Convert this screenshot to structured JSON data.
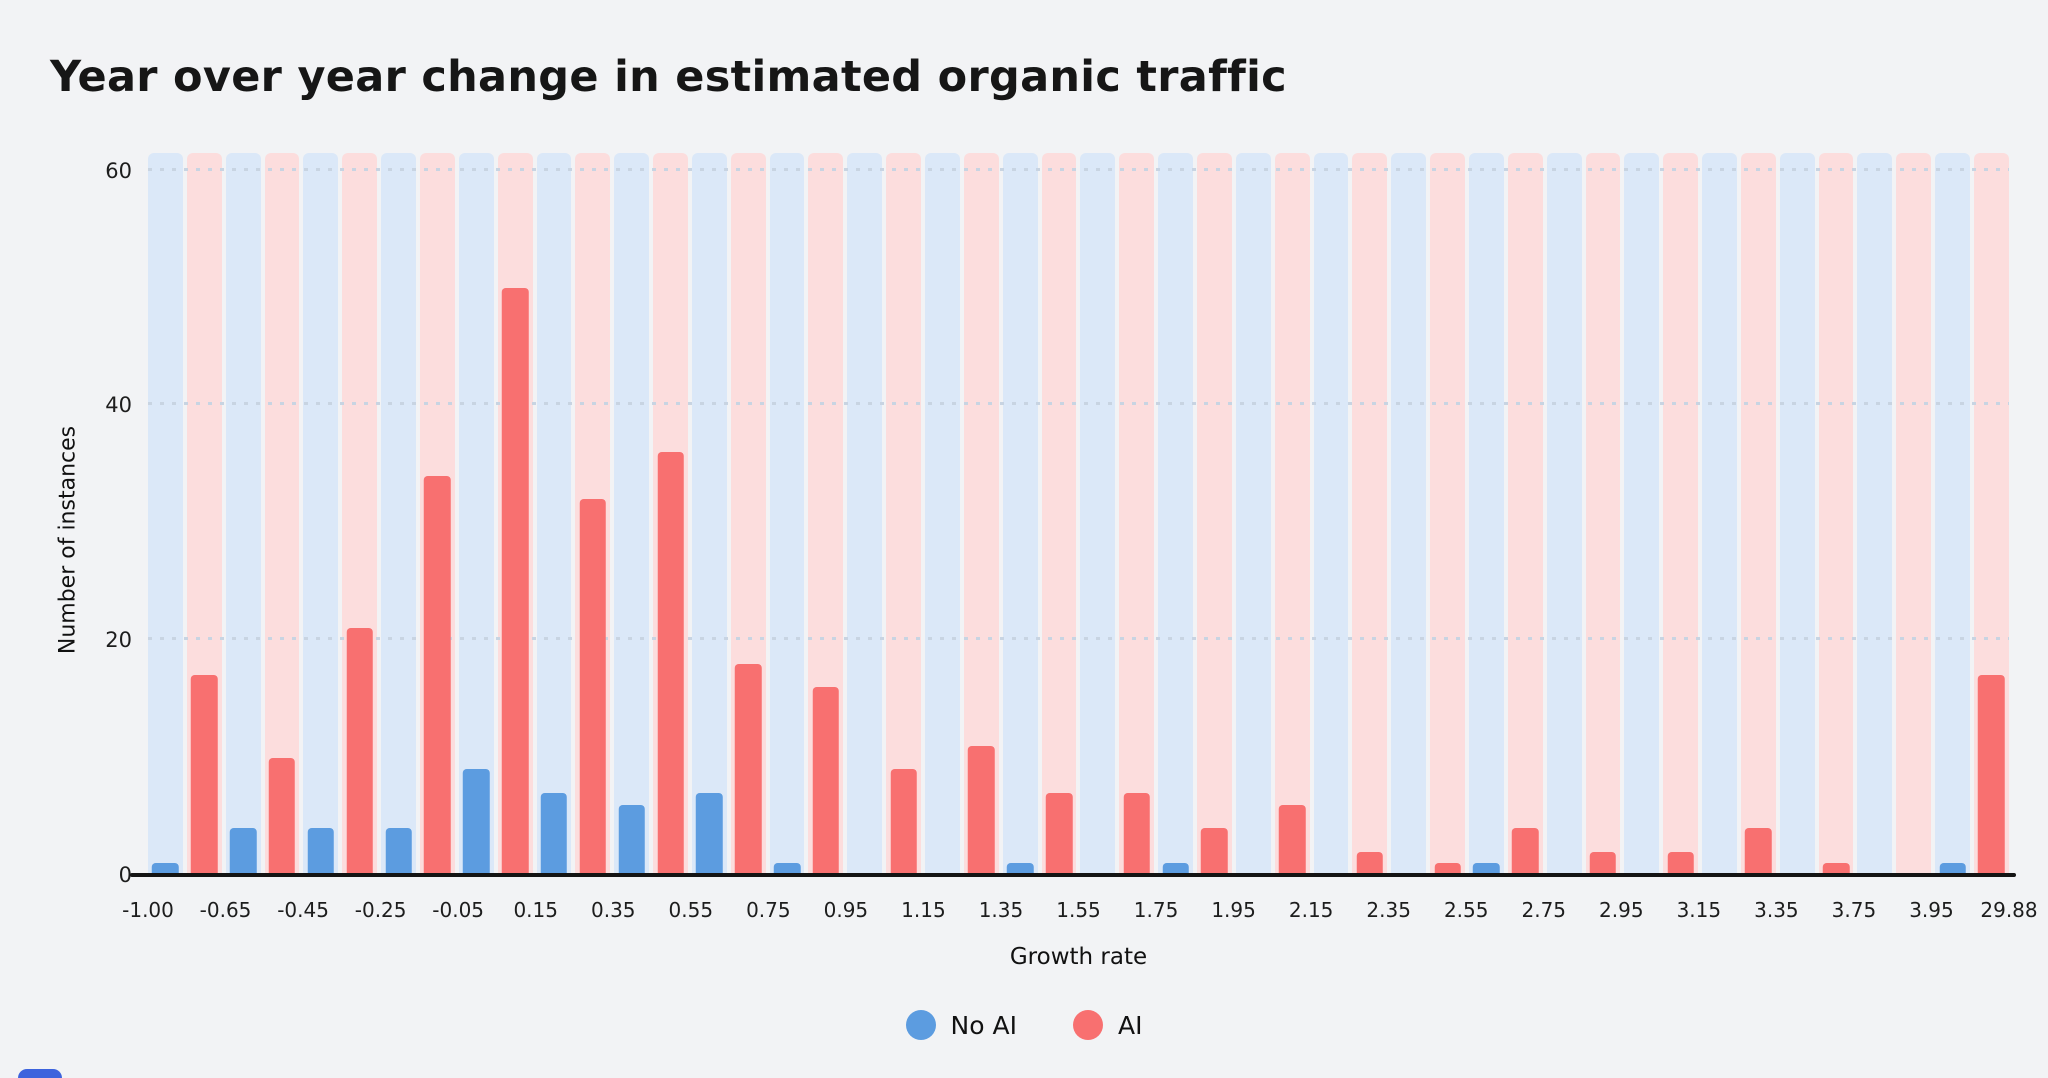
{
  "page": {
    "background": "#f2f3f5",
    "partial_bottom_element_color": "#3d63dd"
  },
  "chart_data": {
    "type": "bar",
    "title": "Year over year change in estimated organic traffic",
    "xlabel": "Growth rate",
    "ylabel": "Number of instances",
    "ylim": [
      0,
      61.5
    ],
    "y_ticks": [
      0,
      20,
      40,
      60
    ],
    "grid": "dotted horizontal gridlines at 20, 40, 60",
    "gridline_color": "#c8d4e2",
    "axis_color": "#141414",
    "legend_position": "bottom-center",
    "x_tick_labels": [
      "-1.00",
      "-0.65",
      "-0.45",
      "-0.25",
      "-0.05",
      "0.15",
      "0.35",
      "0.55",
      "0.75",
      "0.95",
      "1.15",
      "1.35",
      "1.55",
      "1.75",
      "1.95",
      "2.15",
      "2.35",
      "2.55",
      "2.75",
      "2.95",
      "3.15",
      "3.35",
      "3.75",
      "3.95",
      "29.88"
    ],
    "series": [
      {
        "name": "No AI",
        "color": "#5c9ce0",
        "band_color": "#dbe8f8",
        "values": [
          1,
          4,
          4,
          4,
          9,
          7,
          6,
          7,
          1,
          0,
          0,
          1,
          0,
          1,
          0,
          0,
          0,
          1,
          0,
          0,
          0,
          0,
          0,
          1
        ]
      },
      {
        "name": "AI",
        "color": "#f87070",
        "band_color": "#fcdddd",
        "values": [
          17,
          10,
          21,
          34,
          50,
          32,
          36,
          18,
          16,
          9,
          11,
          7,
          7,
          4,
          6,
          2,
          1,
          4,
          2,
          2,
          4,
          1,
          0,
          17
        ]
      }
    ]
  }
}
